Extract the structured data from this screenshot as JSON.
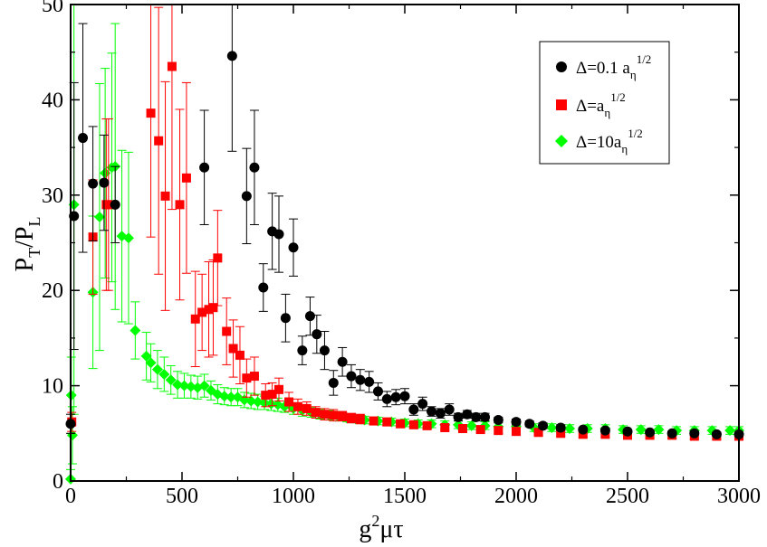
{
  "chart_data": {
    "type": "scatter",
    "title": "",
    "xlabel": {
      "base": "g",
      "sup": "2",
      "rest": "μτ"
    },
    "ylabel": {
      "p1": "P",
      "s1": "T",
      "mid": "/P",
      "s2": "L"
    },
    "xlim": [
      0,
      3000
    ],
    "ylim": [
      0,
      50
    ],
    "xticks": [
      0,
      500,
      1000,
      1500,
      2000,
      2500,
      3000
    ],
    "yticks": [
      0,
      10,
      20,
      30,
      40,
      50
    ],
    "grid": false,
    "legend_position": "top-right",
    "series": [
      {
        "name": "Δ=0.1 a_η^1/2",
        "legend": {
          "main": "Δ=0.1 a",
          "sub": "η",
          "sup": "1/2"
        },
        "color": "#000000",
        "marker": "circle",
        "x": [
          0,
          15,
          55,
          100,
          150,
          200,
          600,
          725,
          790,
          825,
          865,
          905,
          935,
          965,
          1000,
          1040,
          1075,
          1105,
          1140,
          1180,
          1220,
          1260,
          1300,
          1340,
          1380,
          1420,
          1460,
          1500,
          1540,
          1580,
          1620,
          1660,
          1700,
          1740,
          1780,
          1820,
          1860,
          1920,
          2000,
          2060,
          2120,
          2200,
          2300,
          2400,
          2500,
          2600,
          2700,
          2800,
          2900,
          3000
        ],
        "y": [
          6.0,
          27.8,
          36.0,
          31.2,
          31.3,
          29.0,
          32.9,
          44.6,
          29.9,
          32.9,
          20.3,
          26.2,
          25.9,
          17.1,
          24.5,
          13.7,
          17.3,
          15.4,
          13.7,
          10.3,
          12.5,
          11.0,
          10.6,
          10.4,
          9.4,
          8.6,
          8.8,
          8.9,
          7.5,
          8.1,
          7.3,
          7.1,
          7.5,
          6.7,
          7.0,
          6.7,
          6.7,
          6.4,
          6.2,
          6.0,
          5.8,
          5.6,
          5.4,
          5.3,
          5.2,
          5.1,
          5.0,
          5.0,
          4.9,
          4.9
        ],
        "err": [
          1,
          14,
          12,
          6,
          5,
          4,
          6,
          10,
          5,
          6,
          2.5,
          4,
          4,
          2.5,
          3,
          1.5,
          2,
          2,
          2,
          1.3,
          1.5,
          1.2,
          1.1,
          1.1,
          0.9,
          0.8,
          0.8,
          0.8,
          0.6,
          0.7,
          0.5,
          0.5,
          0.6,
          0.4,
          0.4,
          0.4,
          0.4,
          0.3,
          0.3,
          0.3,
          0.3,
          0.3,
          0.2,
          0.2,
          0.2,
          0.2,
          0.2,
          0.2,
          0.2,
          0.2
        ]
      },
      {
        "name": "Δ=a_η^1/2",
        "legend": {
          "main": "Δ=a",
          "sub": "η",
          "sup": "1/2"
        },
        "color": "#ff0000",
        "marker": "square",
        "x": [
          5,
          100,
          160,
          170,
          360,
          395,
          425,
          455,
          490,
          520,
          560,
          590,
          620,
          640,
          660,
          700,
          730,
          760,
          790,
          825,
          875,
          905,
          935,
          980,
          1020,
          1060,
          1100,
          1140,
          1180,
          1220,
          1260,
          1300,
          1360,
          1420,
          1480,
          1540,
          1600,
          1680,
          1760,
          1840,
          1920,
          2000,
          2100,
          2200,
          2300,
          2400,
          2500,
          2600,
          2700,
          2800,
          2900,
          3000
        ],
        "y": [
          6.2,
          25.6,
          29.0,
          29.0,
          38.6,
          35.7,
          29.9,
          43.5,
          29.0,
          31.8,
          17.0,
          17.7,
          18.0,
          18.2,
          23.4,
          15.7,
          13.9,
          13.2,
          10.8,
          11.0,
          9.0,
          9.1,
          9.6,
          8.3,
          7.8,
          7.6,
          7.2,
          7.0,
          6.9,
          6.8,
          6.6,
          6.5,
          6.3,
          6.2,
          6.0,
          5.9,
          5.8,
          5.6,
          5.5,
          5.4,
          5.3,
          5.2,
          5.1,
          5.0,
          4.9,
          4.9,
          4.8,
          4.8,
          4.8,
          4.7,
          4.7,
          4.7
        ],
        "err": [
          1,
          6,
          9,
          9,
          13,
          14,
          12,
          15,
          10,
          10,
          5,
          4,
          5,
          5,
          5,
          3.5,
          3,
          3,
          2,
          2,
          1.2,
          1.2,
          1.2,
          1,
          0.8,
          0.7,
          0.6,
          0.6,
          0.6,
          0.5,
          0.5,
          0.5,
          0.4,
          0.4,
          0.3,
          0.3,
          0.3,
          0.3,
          0.3,
          0.3,
          0.3,
          0.3,
          0.3,
          0.3,
          0.3,
          0.3,
          0.3,
          0.3,
          0.3,
          0.3,
          0.3,
          0.3
        ]
      },
      {
        "name": "Δ=10a_η^1/2",
        "legend": {
          "main": "Δ=10a",
          "sub": "η",
          "sup": "1/2"
        },
        "color": "#00ff00",
        "marker": "diamond",
        "x": [
          0,
          3,
          8,
          15,
          100,
          130,
          155,
          185,
          200,
          230,
          260,
          290,
          340,
          360,
          390,
          420,
          450,
          480,
          510,
          540,
          570,
          600,
          630,
          660,
          690,
          720,
          750,
          780,
          810,
          840,
          870,
          900,
          930,
          960,
          1000,
          1040,
          1080,
          1120,
          1160,
          1200,
          1240,
          1280,
          1320,
          1380,
          1440,
          1500,
          1560,
          1620,
          1680,
          1740,
          1800,
          1860,
          1920,
          2000,
          2080,
          2160,
          2240,
          2320,
          2400,
          2480,
          2560,
          2640,
          2720,
          2800,
          2880,
          2960,
          3000
        ],
        "y": [
          0.2,
          9.0,
          4.8,
          29.0,
          19.8,
          27.7,
          32.3,
          32.9,
          33.0,
          25.7,
          25.5,
          15.8,
          13.1,
          12.4,
          11.7,
          11.2,
          10.6,
          10.1,
          10.0,
          9.9,
          9.8,
          10.0,
          9.5,
          9.1,
          8.9,
          8.8,
          8.8,
          8.5,
          8.4,
          8.3,
          8.2,
          8.1,
          8.0,
          7.8,
          7.6,
          7.4,
          7.2,
          7.0,
          6.9,
          6.8,
          6.6,
          6.5,
          6.4,
          6.3,
          6.2,
          6.1,
          6.0,
          6.0,
          5.9,
          5.9,
          5.8,
          5.8,
          5.7,
          5.7,
          5.6,
          5.6,
          5.5,
          5.5,
          5.5,
          5.4,
          5.4,
          5.4,
          5.3,
          5.3,
          5.3,
          5.3,
          5.3
        ],
        "err": [
          1,
          4,
          3,
          22,
          8,
          14,
          11,
          12,
          15,
          9,
          9,
          3,
          2.5,
          2,
          2,
          1.8,
          1.5,
          1.4,
          1.3,
          1.2,
          1.2,
          1.2,
          1.0,
          1.0,
          0.9,
          0.9,
          0.9,
          0.8,
          0.8,
          0.8,
          0.7,
          0.7,
          0.7,
          0.6,
          0.6,
          0.6,
          0.5,
          0.5,
          0.5,
          0.5,
          0.4,
          0.4,
          0.4,
          0.4,
          0.4,
          0.4,
          0.4,
          0.4,
          0.4,
          0.4,
          0.4,
          0.4,
          0.4,
          0.4,
          0.4,
          0.4,
          0.4,
          0.4,
          0.4,
          0.4,
          0.4,
          0.4,
          0.4,
          0.4,
          0.4,
          0.4,
          0.4
        ]
      }
    ]
  }
}
